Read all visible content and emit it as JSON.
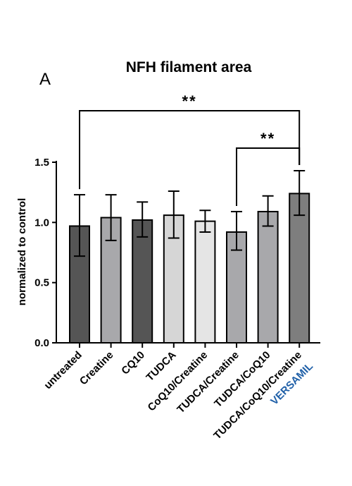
{
  "chart_data": {
    "type": "bar",
    "panel_label": "A",
    "title": "NFH filament area",
    "ylabel": "normalized to control",
    "xlabel": "",
    "ylim": [
      0,
      1.5
    ],
    "yticks": [
      0.0,
      0.5,
      1.0,
      1.5
    ],
    "ytick_labels": [
      "0.0",
      "0.5",
      "1.0",
      "1.5"
    ],
    "categories": [
      "untreated",
      "Creatine",
      "CQ10",
      "TUDCA",
      "CoQ10/Creatine",
      "TUDCA/Creatine",
      "TUDCA/CoQ10",
      "TUDCA/CoQ10/Creatine"
    ],
    "values": [
      0.97,
      1.04,
      1.02,
      1.06,
      1.01,
      0.92,
      1.09,
      1.24
    ],
    "error_high": [
      1.23,
      1.23,
      1.17,
      1.26,
      1.1,
      1.09,
      1.22,
      1.43
    ],
    "error_low": [
      0.72,
      0.85,
      0.88,
      0.87,
      0.92,
      0.77,
      0.97,
      1.06
    ],
    "bar_colors": [
      "#555555",
      "#a8a8ab",
      "#555555",
      "#d6d6d6",
      "#e5e5e5",
      "#a8a8ab",
      "#a8a8ab",
      "#7e7e7e"
    ],
    "extra_label": "VERSAMIL",
    "extra_label_color": "#2060a8",
    "significance": [
      {
        "from": 0,
        "to": 7,
        "label": "**"
      },
      {
        "from": 5,
        "to": 7,
        "label": "**"
      }
    ]
  }
}
